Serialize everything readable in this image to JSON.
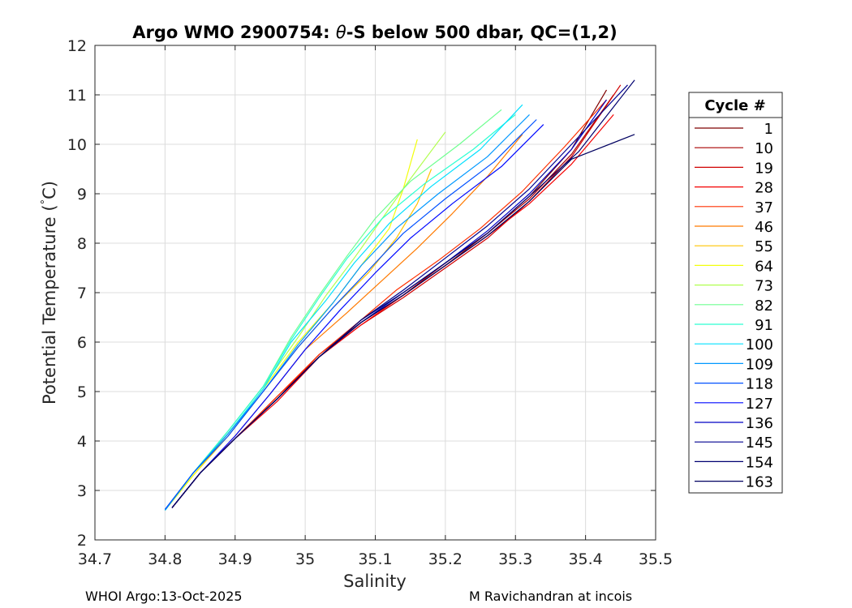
{
  "chart_data": {
    "type": "line",
    "title_parts": [
      "Argo WMO 2900754: ",
      "θ",
      "-S below 500 dbar,  QC=(1,2)"
    ],
    "xlabel": "Salinity",
    "ylabel_parts": [
      "Potential Temperature (",
      "°",
      "C)"
    ],
    "xlim": [
      34.7,
      35.5
    ],
    "ylim": [
      2,
      12
    ],
    "xticks": [
      34.7,
      34.8,
      34.9,
      35,
      35.1,
      35.2,
      35.3,
      35.4,
      35.5
    ],
    "xtick_labels": [
      "34.7",
      "34.8",
      "34.9",
      "35",
      "35.1",
      "35.2",
      "35.3",
      "35.4",
      "35.5"
    ],
    "yticks": [
      2,
      3,
      4,
      5,
      6,
      7,
      8,
      9,
      10,
      11,
      12
    ],
    "ytick_labels": [
      "2",
      "3",
      "4",
      "5",
      "6",
      "7",
      "8",
      "9",
      "10",
      "11",
      "12"
    ],
    "grid": true,
    "legend": {
      "title": "Cycle #",
      "placement": "outside-right",
      "entries": [
        {
          "label": "1",
          "color": "#7f0000"
        },
        {
          "label": "10",
          "color": "#a80000"
        },
        {
          "label": "19",
          "color": "#d00000"
        },
        {
          "label": "28",
          "color": "#f40000"
        },
        {
          "label": "37",
          "color": "#ff3000"
        },
        {
          "label": "46",
          "color": "#ff7a00"
        },
        {
          "label": "55",
          "color": "#ffc400"
        },
        {
          "label": "64",
          "color": "#f2ff0c"
        },
        {
          "label": "73",
          "color": "#b0ff4e"
        },
        {
          "label": "82",
          "color": "#6eff90"
        },
        {
          "label": "91",
          "color": "#2cffd2"
        },
        {
          "label": "100",
          "color": "#00e0ff"
        },
        {
          "label": "109",
          "color": "#0098ff"
        },
        {
          "label": "118",
          "color": "#0050ff"
        },
        {
          "label": "127",
          "color": "#0008ff"
        },
        {
          "label": "136",
          "color": "#0000c4"
        },
        {
          "label": "145",
          "color": "#00008f"
        },
        {
          "label": "154",
          "color": "#000070"
        },
        {
          "label": "163",
          "color": "#000060"
        }
      ]
    },
    "series": [
      {
        "name": "1",
        "color": "#7f0000",
        "x": [
          34.81,
          34.85,
          34.9,
          34.96,
          35.02,
          35.08,
          35.14,
          35.2,
          35.26,
          35.32,
          35.38,
          35.43
        ],
        "y": [
          2.65,
          3.35,
          4.05,
          4.85,
          5.7,
          6.4,
          6.95,
          7.55,
          8.2,
          8.95,
          9.9,
          11.1
        ]
      },
      {
        "name": "10",
        "color": "#a80000",
        "x": [
          34.81,
          34.85,
          34.9,
          34.96,
          35.02,
          35.08,
          35.14,
          35.2,
          35.26,
          35.32,
          35.38,
          35.44
        ],
        "y": [
          2.65,
          3.35,
          4.05,
          4.85,
          5.75,
          6.4,
          6.95,
          7.6,
          8.2,
          8.9,
          9.8,
          11.0
        ]
      },
      {
        "name": "19",
        "color": "#d00000",
        "x": [
          34.81,
          34.85,
          34.9,
          34.96,
          35.02,
          35.08,
          35.14,
          35.2,
          35.26,
          35.32,
          35.38,
          35.45
        ],
        "y": [
          2.65,
          3.35,
          4.05,
          4.9,
          5.7,
          6.35,
          6.9,
          7.5,
          8.1,
          8.85,
          9.75,
          11.2
        ]
      },
      {
        "name": "28",
        "color": "#f40000",
        "x": [
          34.81,
          34.85,
          34.9,
          34.96,
          35.02,
          35.08,
          35.14,
          35.2,
          35.26,
          35.32,
          35.38,
          35.44
        ],
        "y": [
          2.65,
          3.35,
          4.05,
          4.8,
          5.7,
          6.35,
          6.95,
          7.55,
          8.15,
          8.8,
          9.6,
          10.6
        ]
      },
      {
        "name": "37",
        "color": "#ff3000",
        "x": [
          34.81,
          34.85,
          34.9,
          34.96,
          35.02,
          35.08,
          35.13,
          35.19,
          35.25,
          35.31,
          35.37,
          35.43
        ],
        "y": [
          2.65,
          3.35,
          4.05,
          4.9,
          5.75,
          6.45,
          7.05,
          7.65,
          8.3,
          9.05,
          9.95,
          10.9
        ]
      },
      {
        "name": "46",
        "color": "#ff7a00",
        "x": [
          34.81,
          34.85,
          34.9,
          34.95,
          35.0,
          35.06,
          35.11,
          35.16,
          35.21,
          35.26,
          35.31
        ],
        "y": [
          2.65,
          3.35,
          4.1,
          4.95,
          5.85,
          6.6,
          7.25,
          7.9,
          8.6,
          9.35,
          10.2
        ]
      },
      {
        "name": "55",
        "color": "#ffc400",
        "x": [
          34.8,
          34.84,
          34.89,
          34.94,
          34.99,
          35.04,
          35.09,
          35.13,
          35.16,
          35.18
        ],
        "y": [
          2.6,
          3.3,
          4.1,
          5.0,
          5.9,
          6.7,
          7.4,
          8.1,
          8.8,
          9.5
        ]
      },
      {
        "name": "64",
        "color": "#f2ff0c",
        "x": [
          34.8,
          34.84,
          34.89,
          34.94,
          34.99,
          35.04,
          35.08,
          35.12,
          35.14,
          35.16
        ],
        "y": [
          2.6,
          3.3,
          4.15,
          5.05,
          6.0,
          6.8,
          7.55,
          8.3,
          9.1,
          10.1
        ]
      },
      {
        "name": "73",
        "color": "#b0ff4e",
        "x": [
          34.8,
          34.84,
          34.89,
          34.94,
          34.99,
          35.03,
          35.07,
          35.11,
          35.15,
          35.2
        ],
        "y": [
          2.6,
          3.35,
          4.2,
          5.1,
          6.1,
          6.95,
          7.7,
          8.5,
          9.3,
          10.25
        ]
      },
      {
        "name": "82",
        "color": "#6eff90",
        "x": [
          34.8,
          34.84,
          34.89,
          34.94,
          34.98,
          35.02,
          35.06,
          35.1,
          35.15,
          35.22,
          35.28
        ],
        "y": [
          2.6,
          3.35,
          4.2,
          5.1,
          6.1,
          6.95,
          7.75,
          8.5,
          9.25,
          10.0,
          10.7
        ]
      },
      {
        "name": "91",
        "color": "#2cffd2",
        "x": [
          34.8,
          34.84,
          34.89,
          34.94,
          34.98,
          35.02,
          35.06,
          35.11,
          35.17,
          35.24,
          35.3
        ],
        "y": [
          2.6,
          3.35,
          4.2,
          5.1,
          6.05,
          6.9,
          7.7,
          8.5,
          9.2,
          9.9,
          10.6
        ]
      },
      {
        "name": "100",
        "color": "#00e0ff",
        "x": [
          34.8,
          34.84,
          34.89,
          34.94,
          34.98,
          35.03,
          35.07,
          35.12,
          35.18,
          35.25,
          35.31
        ],
        "y": [
          2.6,
          3.35,
          4.15,
          5.05,
          6.0,
          6.85,
          7.6,
          8.4,
          9.15,
          9.9,
          10.8
        ]
      },
      {
        "name": "109",
        "color": "#0098ff",
        "x": [
          34.8,
          34.84,
          34.89,
          34.94,
          34.99,
          35.04,
          35.08,
          35.13,
          35.19,
          35.26,
          35.32
        ],
        "y": [
          2.6,
          3.35,
          4.15,
          5.0,
          5.95,
          6.8,
          7.55,
          8.3,
          9.0,
          9.75,
          10.6
        ]
      },
      {
        "name": "118",
        "color": "#0050ff",
        "x": [
          34.8,
          34.84,
          34.89,
          34.94,
          34.99,
          35.04,
          35.09,
          35.14,
          35.2,
          35.27,
          35.33
        ],
        "y": [
          2.62,
          3.35,
          4.1,
          5.0,
          5.9,
          6.7,
          7.45,
          8.2,
          8.9,
          9.65,
          10.5
        ]
      },
      {
        "name": "127",
        "color": "#0008ff",
        "x": [
          34.81,
          34.85,
          34.9,
          34.95,
          35.0,
          35.05,
          35.1,
          35.15,
          35.21,
          35.28,
          35.34
        ],
        "y": [
          2.65,
          3.35,
          4.1,
          4.95,
          5.85,
          6.65,
          7.4,
          8.1,
          8.8,
          9.55,
          10.4
        ]
      },
      {
        "name": "136",
        "color": "#0000c4",
        "x": [
          34.81,
          34.85,
          34.9,
          34.96,
          35.02,
          35.08,
          35.14,
          35.2,
          35.26,
          35.32,
          35.38,
          35.43
        ],
        "y": [
          2.65,
          3.35,
          4.05,
          4.85,
          5.7,
          6.4,
          7.0,
          7.6,
          8.25,
          9.0,
          9.9,
          10.9
        ]
      },
      {
        "name": "145",
        "color": "#00008f",
        "x": [
          34.81,
          34.85,
          34.9,
          34.96,
          35.02,
          35.08,
          35.14,
          35.2,
          35.26,
          35.32,
          35.38,
          35.46
        ],
        "y": [
          2.65,
          3.35,
          4.05,
          4.85,
          5.7,
          6.45,
          7.05,
          7.7,
          8.35,
          9.1,
          10.0,
          11.2
        ]
      },
      {
        "name": "154",
        "color": "#000070",
        "x": [
          34.81,
          34.85,
          34.9,
          34.96,
          35.02,
          35.08,
          35.14,
          35.2,
          35.26,
          35.32,
          35.39,
          35.47
        ],
        "y": [
          2.65,
          3.35,
          4.05,
          4.85,
          5.7,
          6.45,
          7.0,
          7.6,
          8.2,
          8.95,
          9.85,
          11.3
        ]
      },
      {
        "name": "163",
        "color": "#000060",
        "x": [
          34.81,
          34.85,
          34.9,
          34.96,
          35.02,
          35.08,
          35.14,
          35.2,
          35.26,
          35.32,
          35.38,
          35.47
        ],
        "y": [
          2.65,
          3.35,
          4.05,
          4.85,
          5.7,
          6.4,
          6.95,
          7.55,
          8.15,
          8.85,
          9.7,
          10.2
        ]
      }
    ]
  },
  "footer": {
    "left": "WHOI Argo:13-Oct-2025",
    "right": "M Ravichandran at incois"
  }
}
